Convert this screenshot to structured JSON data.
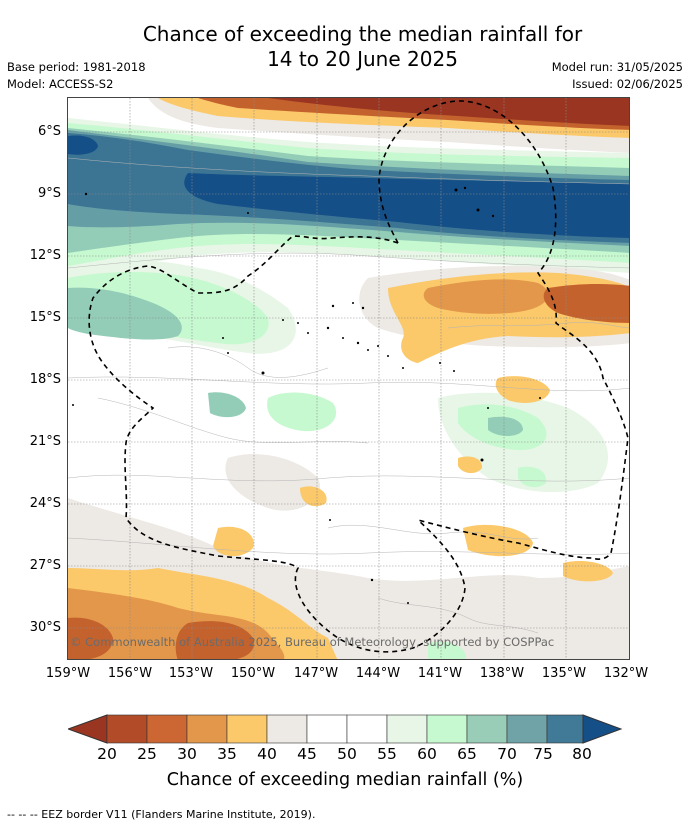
{
  "title": {
    "line1": "Chance of exceeding the median rainfall for",
    "line2": "14 to 20 June 2025"
  },
  "meta": {
    "base_period": "Base period: 1981-2018",
    "model": "Model: ACCESS-S2",
    "model_run": "Model run: 31/05/2025",
    "issued": "Issued: 02/06/2025"
  },
  "map": {
    "lat_labels": [
      "6°S",
      "9°S",
      "12°S",
      "15°S",
      "18°S",
      "21°S",
      "24°S",
      "27°S",
      "30°S"
    ],
    "lon_labels": [
      "159°W",
      "156°W",
      "153°W",
      "150°W",
      "147°W",
      "144°W",
      "141°W",
      "138°W",
      "135°W",
      "132°W"
    ],
    "copyright": "© Commonwealth of Australia 2025, Bureau of Meteorology, supported by COSPPac",
    "colors": {
      "very_dry": "#9a3521",
      "dry": "#c4622d",
      "mid_dry": "#e3974a",
      "slightly_dry": "#fbc86a",
      "neutral_dry": "#ede9e4",
      "neutral": "#ffffff",
      "neutral_wet": "#e7f6e6",
      "slightly_wet": "#c6f9cf",
      "mid_wet": "#93cdb8",
      "wet": "#669ea6",
      "very_wet": "#3c7594",
      "extreme_wet": "#154f88"
    }
  },
  "colorbar": {
    "ticks": [
      "20",
      "25",
      "30",
      "35",
      "40",
      "45",
      "50",
      "55",
      "60",
      "65",
      "70",
      "75",
      "80"
    ],
    "colors": [
      "#9a3521",
      "#b24b27",
      "#cc6632",
      "#e3974a",
      "#fbc86a",
      "#ede9e4",
      "#ffffff",
      "#ffffff",
      "#e7f6e6",
      "#c6f9cf",
      "#9acdb8",
      "#6fa3a8",
      "#417a96",
      "#154f88"
    ],
    "title": "Chance of exceeding median rainfall (%)"
  },
  "footnote": "--  --  -- EEZ border V11 (Flanders Marine Institute, 2019)."
}
